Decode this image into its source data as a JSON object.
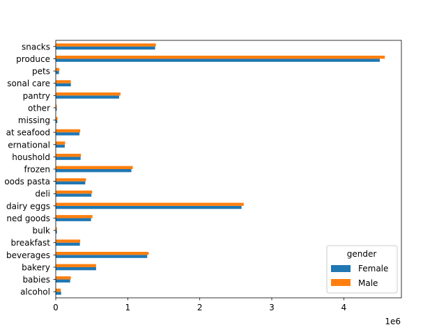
{
  "chart_data": {
    "type": "bar",
    "orientation": "horizontal",
    "categories": [
      "alcohol",
      "babies",
      "bakery",
      "beverages",
      "breakfast",
      "bulk",
      "canned goods",
      "dairy eggs",
      "deli",
      "dry goods pasta",
      "frozen",
      "houshold",
      "international",
      "meat seafood",
      "missing",
      "other",
      "pantry",
      "personal care",
      "pets",
      "produce",
      "snacks"
    ],
    "category_labels": [
      "alcohol",
      "babies",
      "bakery",
      "beverages",
      "breakfast",
      "bulk",
      "ned goods",
      "dairy eggs",
      "deli",
      "oods pasta",
      "frozen",
      "houshold",
      "ernational",
      "at seafood",
      "missing",
      "other",
      "pantry",
      "sonal care",
      "pets",
      "produce",
      "snacks"
    ],
    "series": [
      {
        "name": "Female",
        "color": "#1f77b4",
        "values": [
          75000,
          200000,
          560000,
          1270000,
          335000,
          17000,
          490000,
          2580000,
          495000,
          410000,
          1050000,
          345000,
          125000,
          330000,
          22000,
          14000,
          880000,
          210000,
          45000,
          4500000,
          1380000
        ]
      },
      {
        "name": "Male",
        "color": "#ff7f0e",
        "values": [
          70000,
          210000,
          560000,
          1290000,
          340000,
          17000,
          510000,
          2610000,
          505000,
          420000,
          1070000,
          350000,
          130000,
          340000,
          25000,
          15000,
          900000,
          210000,
          50000,
          4570000,
          1390000
        ]
      }
    ],
    "title": "",
    "xlabel": "",
    "ylabel": "",
    "xlim": [
      0,
      4800000
    ],
    "xticks": [
      0,
      1000000,
      2000000,
      3000000,
      4000000
    ],
    "xtick_labels": [
      "0",
      "1",
      "2",
      "3",
      "4"
    ],
    "offset_text": "1e6",
    "legend": {
      "title": "gender",
      "placement": "lower right"
    },
    "grid": false
  }
}
